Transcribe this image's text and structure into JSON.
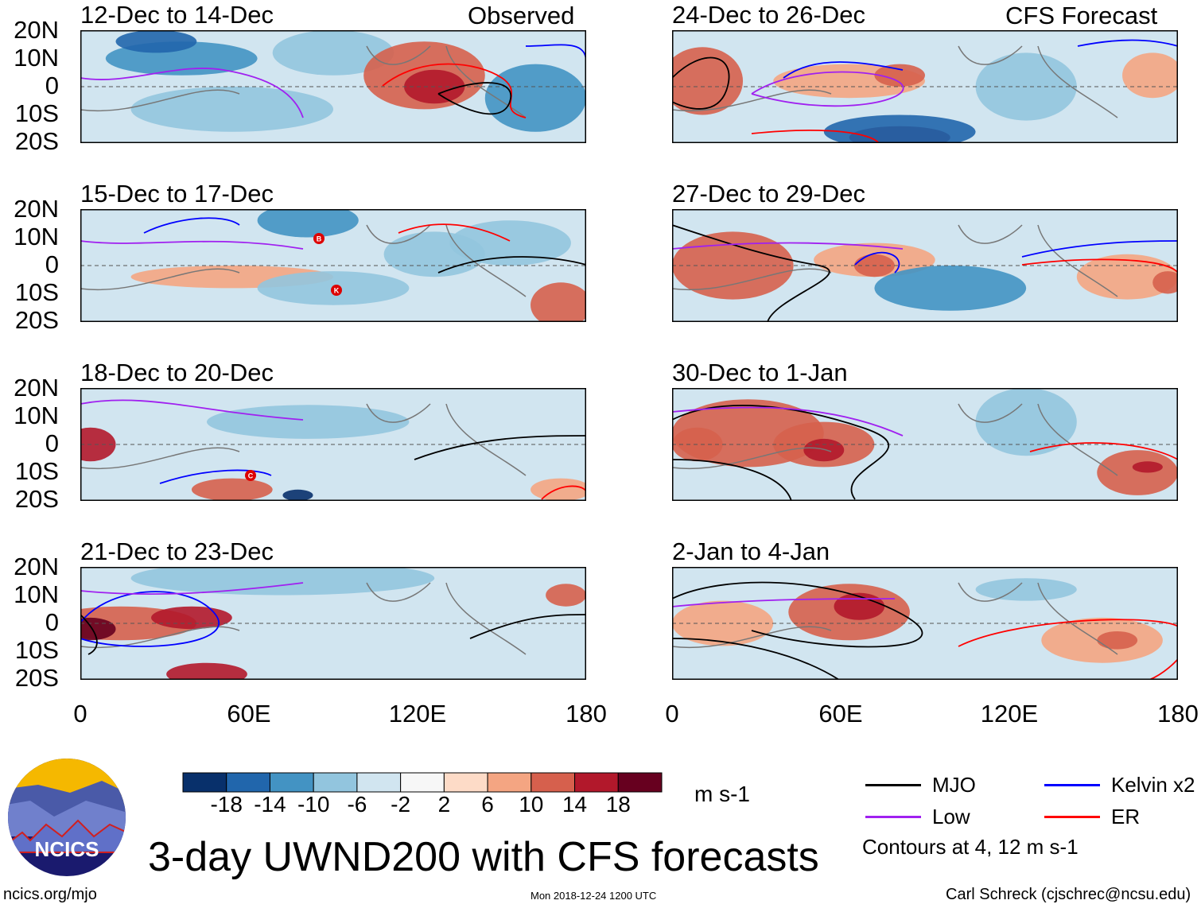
{
  "chart_data": {
    "type": "heatmap",
    "title": "3-day UWND200 with CFS forecasts",
    "colorbar": {
      "units": "m s-1",
      "levels": [
        -18,
        -14,
        -10,
        -6,
        -2,
        2,
        6,
        10,
        14,
        18
      ],
      "level_labels": [
        "-18",
        "-14",
        "-10",
        "-6",
        "-2",
        "2",
        "6",
        "10",
        "14",
        "18"
      ],
      "colors": [
        "#08306b",
        "#2166ac",
        "#4393c3",
        "#92c5de",
        "#d1e5f0",
        "#f7f7f7",
        "#fddbc7",
        "#f4a582",
        "#d6604d",
        "#b2182b",
        "#67001f"
      ]
    },
    "lat_ticks": [
      "20N",
      "10N",
      "0",
      "10S",
      "20S"
    ],
    "lon_ticks": [
      "0",
      "60E",
      "120E",
      "180"
    ],
    "observed_label": "Observed",
    "forecast_label": "CFS Forecast",
    "panels": [
      {
        "title": "12-Dec to 14-Dec",
        "type": "observed"
      },
      {
        "title": "15-Dec to 17-Dec",
        "type": "observed",
        "storms": [
          "B",
          "K"
        ]
      },
      {
        "title": "18-Dec to 20-Dec",
        "type": "observed",
        "storms": [
          "C"
        ]
      },
      {
        "title": "21-Dec to 23-Dec",
        "type": "observed"
      },
      {
        "title": "24-Dec to 26-Dec",
        "type": "forecast"
      },
      {
        "title": "27-Dec to 29-Dec",
        "type": "forecast"
      },
      {
        "title": "30-Dec to 1-Jan",
        "type": "forecast"
      },
      {
        "title": "2-Jan to 4-Jan",
        "type": "forecast"
      }
    ],
    "legend": [
      {
        "label": "MJO",
        "color": "#000000"
      },
      {
        "label": "Kelvin x2",
        "color": "#0000ff"
      },
      {
        "label": "Low",
        "color": "#a020f0"
      },
      {
        "label": "ER",
        "color": "#ff0000"
      }
    ],
    "contour_note": "Contours at 4, 12 m s-1"
  },
  "footer": {
    "logo_text": "NCICS",
    "url": "ncics.org/mjo",
    "timestamp": "Mon 2018-12-24 1200 UTC",
    "author": "Carl Schreck (cjschrec@ncsu.edu)"
  }
}
